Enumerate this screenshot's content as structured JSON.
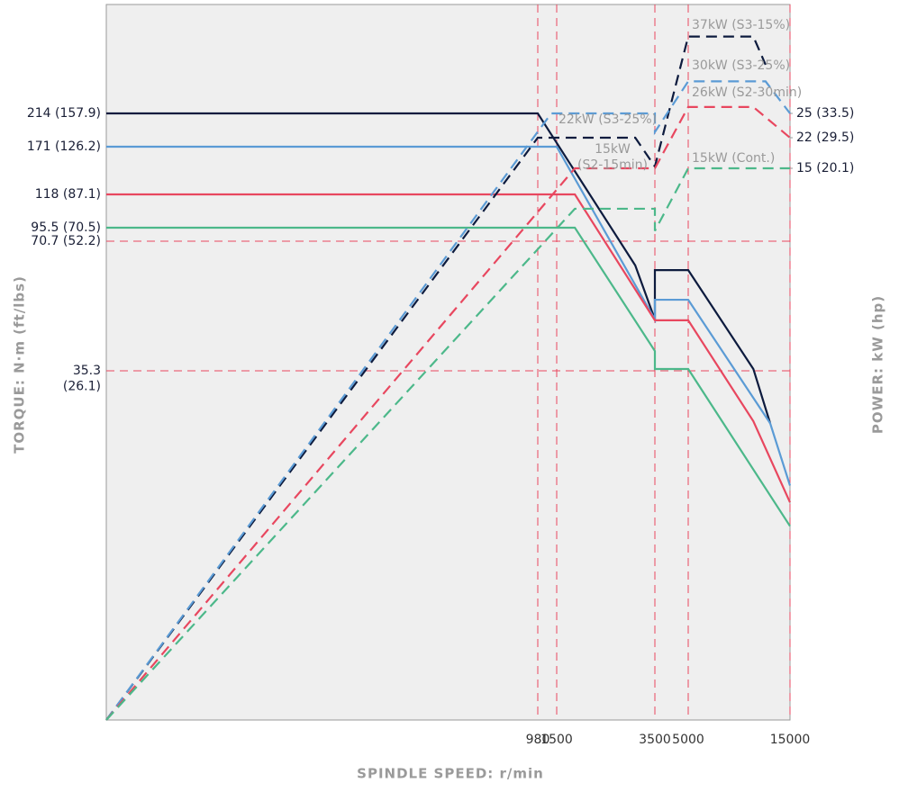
{
  "chart_data": {
    "type": "line",
    "xlabel": "SPINDLE SPEED: r/min",
    "ylabel": "TORQUE: N·m (ft/lbs)",
    "y2label": "POWER: kW (hp)",
    "xlim": [
      0,
      15000
    ],
    "xticks": [
      980,
      1500,
      3500,
      5000,
      15000
    ],
    "xgrid": true,
    "ylim": [
      0,
      350
    ],
    "yticks": [
      {
        "value": 214,
        "label": "214 (157.9)"
      },
      {
        "value": 171,
        "label": "171 (126.2)"
      },
      {
        "value": 118,
        "label": "118 (87.1)"
      },
      {
        "value": 95.5,
        "label": "95.5 (70.5)"
      },
      {
        "value": 70.7,
        "label": "70.7 (52.2)",
        "grid": true
      },
      {
        "value": 35.3,
        "label": "35.3\n(26.1)",
        "grid": true
      }
    ],
    "y2lim": [
      0,
      42
    ],
    "y2ticks": [
      {
        "value": 25,
        "label": "25 (33.5)"
      },
      {
        "value": 22,
        "label": "22 (29.5)"
      },
      {
        "value": 15,
        "label": "15 (20.1)"
      }
    ],
    "series": [
      {
        "color": "#0d1b3e",
        "style": "solid",
        "x": [
          0,
          980,
          3100,
          3500,
          3500,
          5000,
          11400,
          13050
        ],
        "values": [
          214,
          214,
          64.1,
          49.3,
          62.8,
          62.8,
          35.8,
          30
        ]
      },
      {
        "color": "#5b9bd5",
        "style": "solid",
        "x": [
          0,
          1500,
          3500,
          3500,
          5000,
          13050,
          15000
        ],
        "values": [
          171,
          171,
          49.3,
          54.7,
          54.7,
          30,
          23.7
        ]
      },
      {
        "color": "#e8475f",
        "style": "solid",
        "x": [
          0,
          1870,
          3500,
          5000,
          11400,
          15000
        ],
        "values": [
          118,
          118,
          49.1,
          49.1,
          30.2,
          22
        ]
      },
      {
        "color": "#4cb88a",
        "style": "solid",
        "x": [
          0,
          1870,
          3500,
          3500,
          5000,
          15000
        ],
        "values": [
          95.5,
          95.5,
          40.7,
          35.8,
          35.8,
          19.6
        ]
      },
      {
        "color": "#0d1b3e",
        "style": "dashed",
        "axis": "y2",
        "label": "37kW (S3-15%)",
        "x": [
          0,
          980,
          3100,
          3500,
          5000,
          11400,
          12600
        ],
        "values": [
          0,
          22,
          22,
          15.4,
          37,
          37,
          32.6
        ]
      },
      {
        "color": "#5b9bd5",
        "style": "dashed",
        "axis": "y2",
        "label": "30kW (S3-25%)",
        "x": [
          0,
          1350,
          3500,
          3500,
          5000,
          12600,
          15000
        ],
        "values": [
          0,
          25,
          25,
          22.7,
          30,
          30,
          25
        ]
      },
      {
        "color": "#e8475f",
        "style": "dashed",
        "axis": "y2",
        "label": "26kW (S2-30min)",
        "x": [
          0,
          1870,
          3500,
          5000,
          11400,
          15000
        ],
        "values": [
          0,
          15,
          15,
          26,
          26,
          22
        ]
      },
      {
        "color": "#4cb88a",
        "style": "dashed",
        "axis": "y2",
        "label": "15kW (Cont.)",
        "x": [
          0,
          1870,
          3500,
          3500,
          5000,
          15000
        ],
        "values": [
          0,
          13.9,
          13.9,
          13.3,
          15,
          15
        ]
      }
    ],
    "annotations": [
      "22kW (S3-25%)",
      "15kW\n(S2-15min)"
    ]
  }
}
